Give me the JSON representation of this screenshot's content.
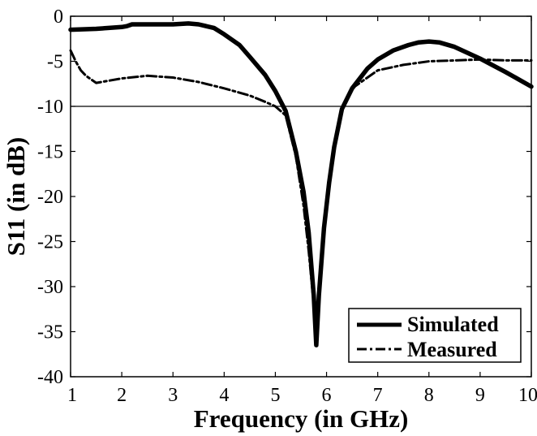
{
  "chart_data": {
    "type": "line",
    "title": "",
    "xlabel": "Frequency (in GHz)",
    "ylabel": "S11 (in dB)",
    "xlim": [
      1,
      10
    ],
    "ylim": [
      -40,
      0
    ],
    "xticks": [
      1,
      2,
      3,
      4,
      5,
      6,
      7,
      8,
      9,
      10
    ],
    "yticks": [
      0,
      -5,
      -10,
      -15,
      -20,
      -25,
      -30,
      -35,
      -40
    ],
    "xtick_labels": [
      "1",
      "2",
      "3",
      "4",
      "5",
      "6",
      "7",
      "8",
      "9",
      "10"
    ],
    "ytick_labels": [
      "0",
      "-5",
      "-10",
      "-15",
      "-20",
      "-25",
      "-30",
      "-35",
      "-40"
    ],
    "grid": false,
    "reference_line": {
      "y": -10,
      "color": "#000000"
    },
    "legend": {
      "placement": "bottom-right"
    },
    "series": [
      {
        "name": "Simulated",
        "style": "solid",
        "color": "#000000",
        "x": [
          1.0,
          1.5,
          2.0,
          2.1,
          2.2,
          2.5,
          3.0,
          3.3,
          3.5,
          3.8,
          4.0,
          4.3,
          4.5,
          4.8,
          5.0,
          5.2,
          5.4,
          5.55,
          5.65,
          5.75,
          5.8,
          5.85,
          5.95,
          6.05,
          6.15,
          6.3,
          6.5,
          6.8,
          7.0,
          7.3,
          7.6,
          7.8,
          8.0,
          8.2,
          8.5,
          9.0,
          9.5,
          10.0
        ],
        "y": [
          -1.5,
          -1.4,
          -1.2,
          -1.1,
          -0.9,
          -0.9,
          -0.9,
          -0.8,
          -0.9,
          -1.3,
          -2.0,
          -3.2,
          -4.5,
          -6.5,
          -8.3,
          -10.5,
          -15.0,
          -19.5,
          -24.0,
          -31.0,
          -36.5,
          -31.0,
          -23.5,
          -18.5,
          -14.5,
          -10.3,
          -8.0,
          -5.8,
          -4.8,
          -3.8,
          -3.2,
          -2.9,
          -2.8,
          -2.9,
          -3.4,
          -4.7,
          -6.2,
          -7.8
        ]
      },
      {
        "name": "Measured",
        "style": "dashdot",
        "color": "#000000",
        "x": [
          1.0,
          1.1,
          1.2,
          1.3,
          1.4,
          1.5,
          2.0,
          2.5,
          3.0,
          3.5,
          4.0,
          4.5,
          4.8,
          5.0,
          5.2,
          5.4,
          5.55,
          5.65,
          5.75,
          5.8,
          5.85,
          5.95,
          6.05,
          6.15,
          6.3,
          6.5,
          7.0,
          7.5,
          8.0,
          8.5,
          9.0,
          9.5,
          10.0
        ],
        "y": [
          -3.8,
          -5.0,
          -6.0,
          -6.6,
          -7.0,
          -7.4,
          -6.9,
          -6.6,
          -6.8,
          -7.3,
          -8.0,
          -8.8,
          -9.5,
          -10.0,
          -11.0,
          -15.5,
          -21.0,
          -26.0,
          -32.0,
          -36.3,
          -31.0,
          -24.0,
          -18.5,
          -14.5,
          -10.5,
          -8.0,
          -6.0,
          -5.4,
          -5.0,
          -4.9,
          -4.8,
          -4.9,
          -4.9
        ]
      }
    ]
  }
}
